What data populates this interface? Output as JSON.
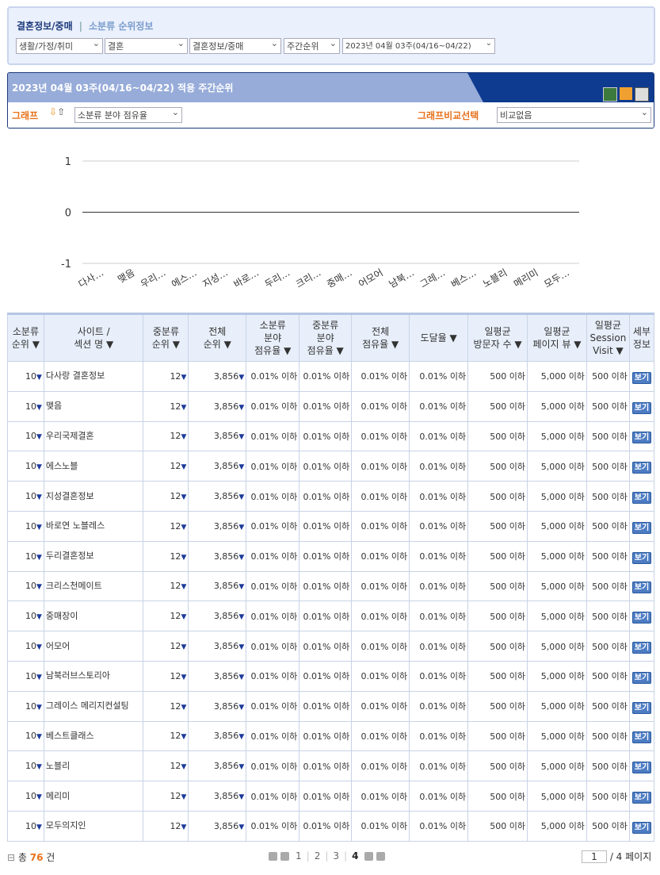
{
  "breadcrumb": {
    "current": "결혼정보/중매",
    "sub": "소분류 순위정보"
  },
  "filters": [
    "생활/가정/취미",
    "결혼",
    "결혼정보/중매",
    "주간순위",
    "2023년 04월 03주(04/16~04/22)"
  ],
  "panel": {
    "title": "2023년 04월 03주(04/16~04/22) 적용 주간순위",
    "graph_label": "그래프",
    "graph_select": "소분류 분야 점유율",
    "compare_label": "그래프비교선택",
    "compare_select": "비교없음"
  },
  "chart_data": {
    "type": "line",
    "yticks": [
      "1",
      "0",
      "-1"
    ],
    "ylim": [
      -1,
      1
    ],
    "categories": [
      "다사…",
      "맺음",
      "우리…",
      "에스…",
      "지성…",
      "바로…",
      "두리…",
      "크리…",
      "중매…",
      "어모어",
      "남북…",
      "그레…",
      "베스…",
      "노블리",
      "메리미",
      "모두…"
    ],
    "values": [
      0,
      0,
      0,
      0,
      0,
      0,
      0,
      0,
      0,
      0,
      0,
      0,
      0,
      0,
      0,
      0
    ]
  },
  "table": {
    "headers": [
      "소분류\n순위 ▼",
      "사이트 /\n섹션 명 ▼",
      "중분류\n순위 ▼",
      "전체\n순위 ▼",
      "소분류\n분야\n점유율 ▼",
      "중분류\n분야\n점유율 ▼",
      "전체\n점유율 ▼",
      "도달율 ▼",
      "일평균\n방문자 수 ▼",
      "일평균\n페이지 뷰 ▼",
      "일평균\nSession\nVisit ▼",
      "세부\n정보"
    ],
    "rows": [
      [
        "10",
        "다사랑 결혼정보",
        "12",
        "3,856",
        "0.01% 이하",
        "0.01% 이하",
        "0.01% 이하",
        "0.01% 이하",
        "500 이하",
        "5,000 이하",
        "500 이하",
        "보기"
      ],
      [
        "10",
        "맺음",
        "12",
        "3,856",
        "0.01% 이하",
        "0.01% 이하",
        "0.01% 이하",
        "0.01% 이하",
        "500 이하",
        "5,000 이하",
        "500 이하",
        "보기"
      ],
      [
        "10",
        "우리국제결혼",
        "12",
        "3,856",
        "0.01% 이하",
        "0.01% 이하",
        "0.01% 이하",
        "0.01% 이하",
        "500 이하",
        "5,000 이하",
        "500 이하",
        "보기"
      ],
      [
        "10",
        "에스노블",
        "12",
        "3,856",
        "0.01% 이하",
        "0.01% 이하",
        "0.01% 이하",
        "0.01% 이하",
        "500 이하",
        "5,000 이하",
        "500 이하",
        "보기"
      ],
      [
        "10",
        "지성결혼정보",
        "12",
        "3,856",
        "0.01% 이하",
        "0.01% 이하",
        "0.01% 이하",
        "0.01% 이하",
        "500 이하",
        "5,000 이하",
        "500 이하",
        "보기"
      ],
      [
        "10",
        "바로연 노블레스",
        "12",
        "3,856",
        "0.01% 이하",
        "0.01% 이하",
        "0.01% 이하",
        "0.01% 이하",
        "500 이하",
        "5,000 이하",
        "500 이하",
        "보기"
      ],
      [
        "10",
        "두리결혼정보",
        "12",
        "3,856",
        "0.01% 이하",
        "0.01% 이하",
        "0.01% 이하",
        "0.01% 이하",
        "500 이하",
        "5,000 이하",
        "500 이하",
        "보기"
      ],
      [
        "10",
        "크리스천메이트",
        "12",
        "3,856",
        "0.01% 이하",
        "0.01% 이하",
        "0.01% 이하",
        "0.01% 이하",
        "500 이하",
        "5,000 이하",
        "500 이하",
        "보기"
      ],
      [
        "10",
        "중매장이",
        "12",
        "3,856",
        "0.01% 이하",
        "0.01% 이하",
        "0.01% 이하",
        "0.01% 이하",
        "500 이하",
        "5,000 이하",
        "500 이하",
        "보기"
      ],
      [
        "10",
        "어모어",
        "12",
        "3,856",
        "0.01% 이하",
        "0.01% 이하",
        "0.01% 이하",
        "0.01% 이하",
        "500 이하",
        "5,000 이하",
        "500 이하",
        "보기"
      ],
      [
        "10",
        "남북러브스토리아",
        "12",
        "3,856",
        "0.01% 이하",
        "0.01% 이하",
        "0.01% 이하",
        "0.01% 이하",
        "500 이하",
        "5,000 이하",
        "500 이하",
        "보기"
      ],
      [
        "10",
        "그레이스 메리지컨설팅",
        "12",
        "3,856",
        "0.01% 이하",
        "0.01% 이하",
        "0.01% 이하",
        "0.01% 이하",
        "500 이하",
        "5,000 이하",
        "500 이하",
        "보기"
      ],
      [
        "10",
        "베스트클래스",
        "12",
        "3,856",
        "0.01% 이하",
        "0.01% 이하",
        "0.01% 이하",
        "0.01% 이하",
        "500 이하",
        "5,000 이하",
        "500 이하",
        "보기"
      ],
      [
        "10",
        "노블리",
        "12",
        "3,856",
        "0.01% 이하",
        "0.01% 이하",
        "0.01% 이하",
        "0.01% 이하",
        "500 이하",
        "5,000 이하",
        "500 이하",
        "보기"
      ],
      [
        "10",
        "메리미",
        "12",
        "3,856",
        "0.01% 이하",
        "0.01% 이하",
        "0.01% 이하",
        "0.01% 이하",
        "500 이하",
        "5,000 이하",
        "500 이하",
        "보기"
      ],
      [
        "10",
        "모두의지인",
        "12",
        "3,856",
        "0.01% 이하",
        "0.01% 이하",
        "0.01% 이하",
        "0.01% 이하",
        "500 이하",
        "5,000 이하",
        "500 이하",
        "보기"
      ]
    ]
  },
  "footer": {
    "total_prefix": "총",
    "total": "76",
    "total_suffix": "건",
    "pages": [
      "1",
      "2",
      "3",
      "4"
    ],
    "current_page": "4",
    "page_input": "1",
    "page_total": "/ 4 페이지"
  }
}
